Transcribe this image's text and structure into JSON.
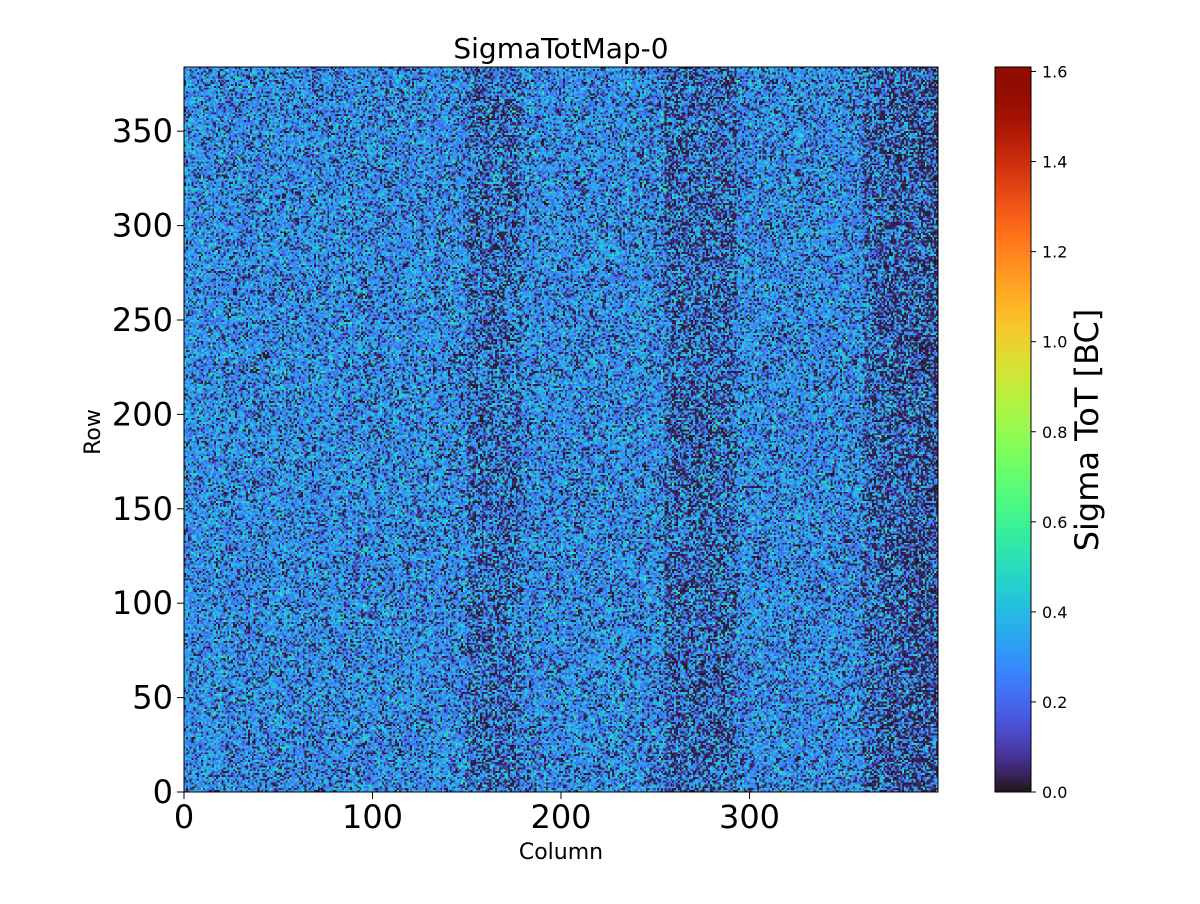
{
  "chart_data": {
    "type": "heatmap",
    "title": "SigmaTotMap-0",
    "xlabel": "Column",
    "ylabel": "Row",
    "xlim": [
      0,
      400
    ],
    "ylim": [
      0,
      384
    ],
    "grid": false,
    "x_ticks": [
      0,
      100,
      200,
      300
    ],
    "y_ticks": [
      0,
      50,
      100,
      150,
      200,
      250,
      300,
      350
    ],
    "x_tick_labels": [
      "0",
      "100",
      "200",
      "300"
    ],
    "y_tick_labels": [
      "0",
      "50",
      "100",
      "150",
      "200",
      "250",
      "300",
      "350"
    ],
    "colormap": "turbo",
    "colorbar": {
      "label": "Sigma ToT [BC]",
      "range": [
        0.0,
        1.61
      ],
      "ticks": [
        0.0,
        0.2,
        0.4,
        0.6,
        0.8,
        1.0,
        1.2,
        1.4,
        1.6
      ],
      "tick_labels": [
        "0.0",
        "0.2",
        "0.4",
        "0.6",
        "0.8",
        "1.0",
        "1.2",
        "1.4",
        "1.6"
      ]
    },
    "grid_shape": {
      "columns": 400,
      "rows": 384
    },
    "value_summary": {
      "typical_value": 0.3,
      "typical_range": [
        0.0,
        0.5
      ],
      "note": "Per-pixel noise; dense low-value (~0) patches form vertical bands near columns 150-175, 260-290 and 370-400."
    }
  }
}
